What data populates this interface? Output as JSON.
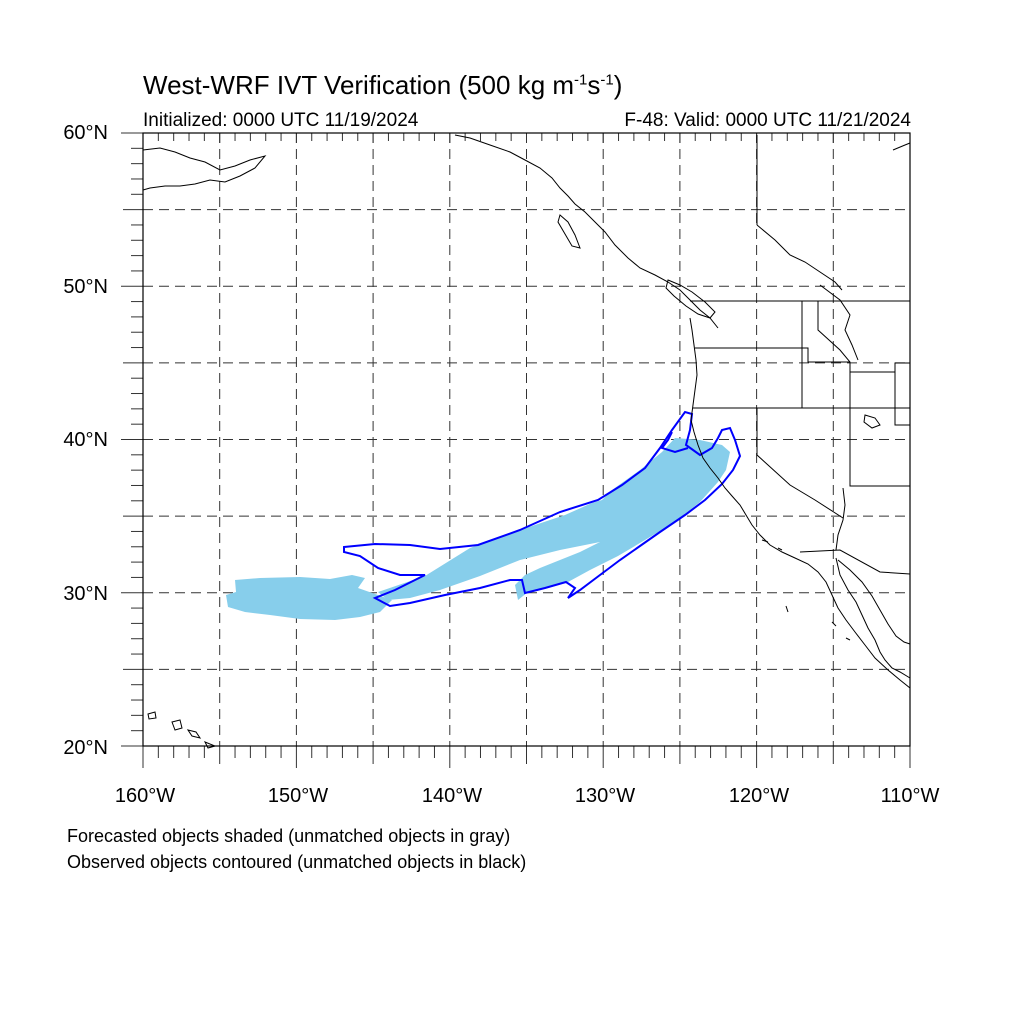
{
  "title": {
    "prefix": "West-WRF IVT Verification (500 kg m",
    "exp1": "-1",
    "mid": "s",
    "exp2": "-1",
    "suffix": ")"
  },
  "initialized": "Initialized: 0000 UTC 11/19/2024",
  "valid": "F-48: Valid: 0000 UTC 11/21/2024",
  "lat_labels": [
    "60°N",
    "50°N",
    "40°N",
    "30°N",
    "20°N"
  ],
  "lon_labels": [
    "160°W",
    "150°W",
    "140°W",
    "130°W",
    "120°W",
    "110°W"
  ],
  "notes": {
    "forecast": "Forecasted objects shaded (unmatched objects in gray)",
    "observed": "Observed objects contoured (unmatched objects in black)"
  },
  "map": {
    "lon_range": [
      -160,
      -110
    ],
    "lat_range": [
      20,
      60
    ],
    "grid_lon_step": 5,
    "grid_lat_step": 5,
    "forecast_color": "#87ceeb",
    "observed_color": "#0000ff",
    "coastline_color": "#000000"
  }
}
